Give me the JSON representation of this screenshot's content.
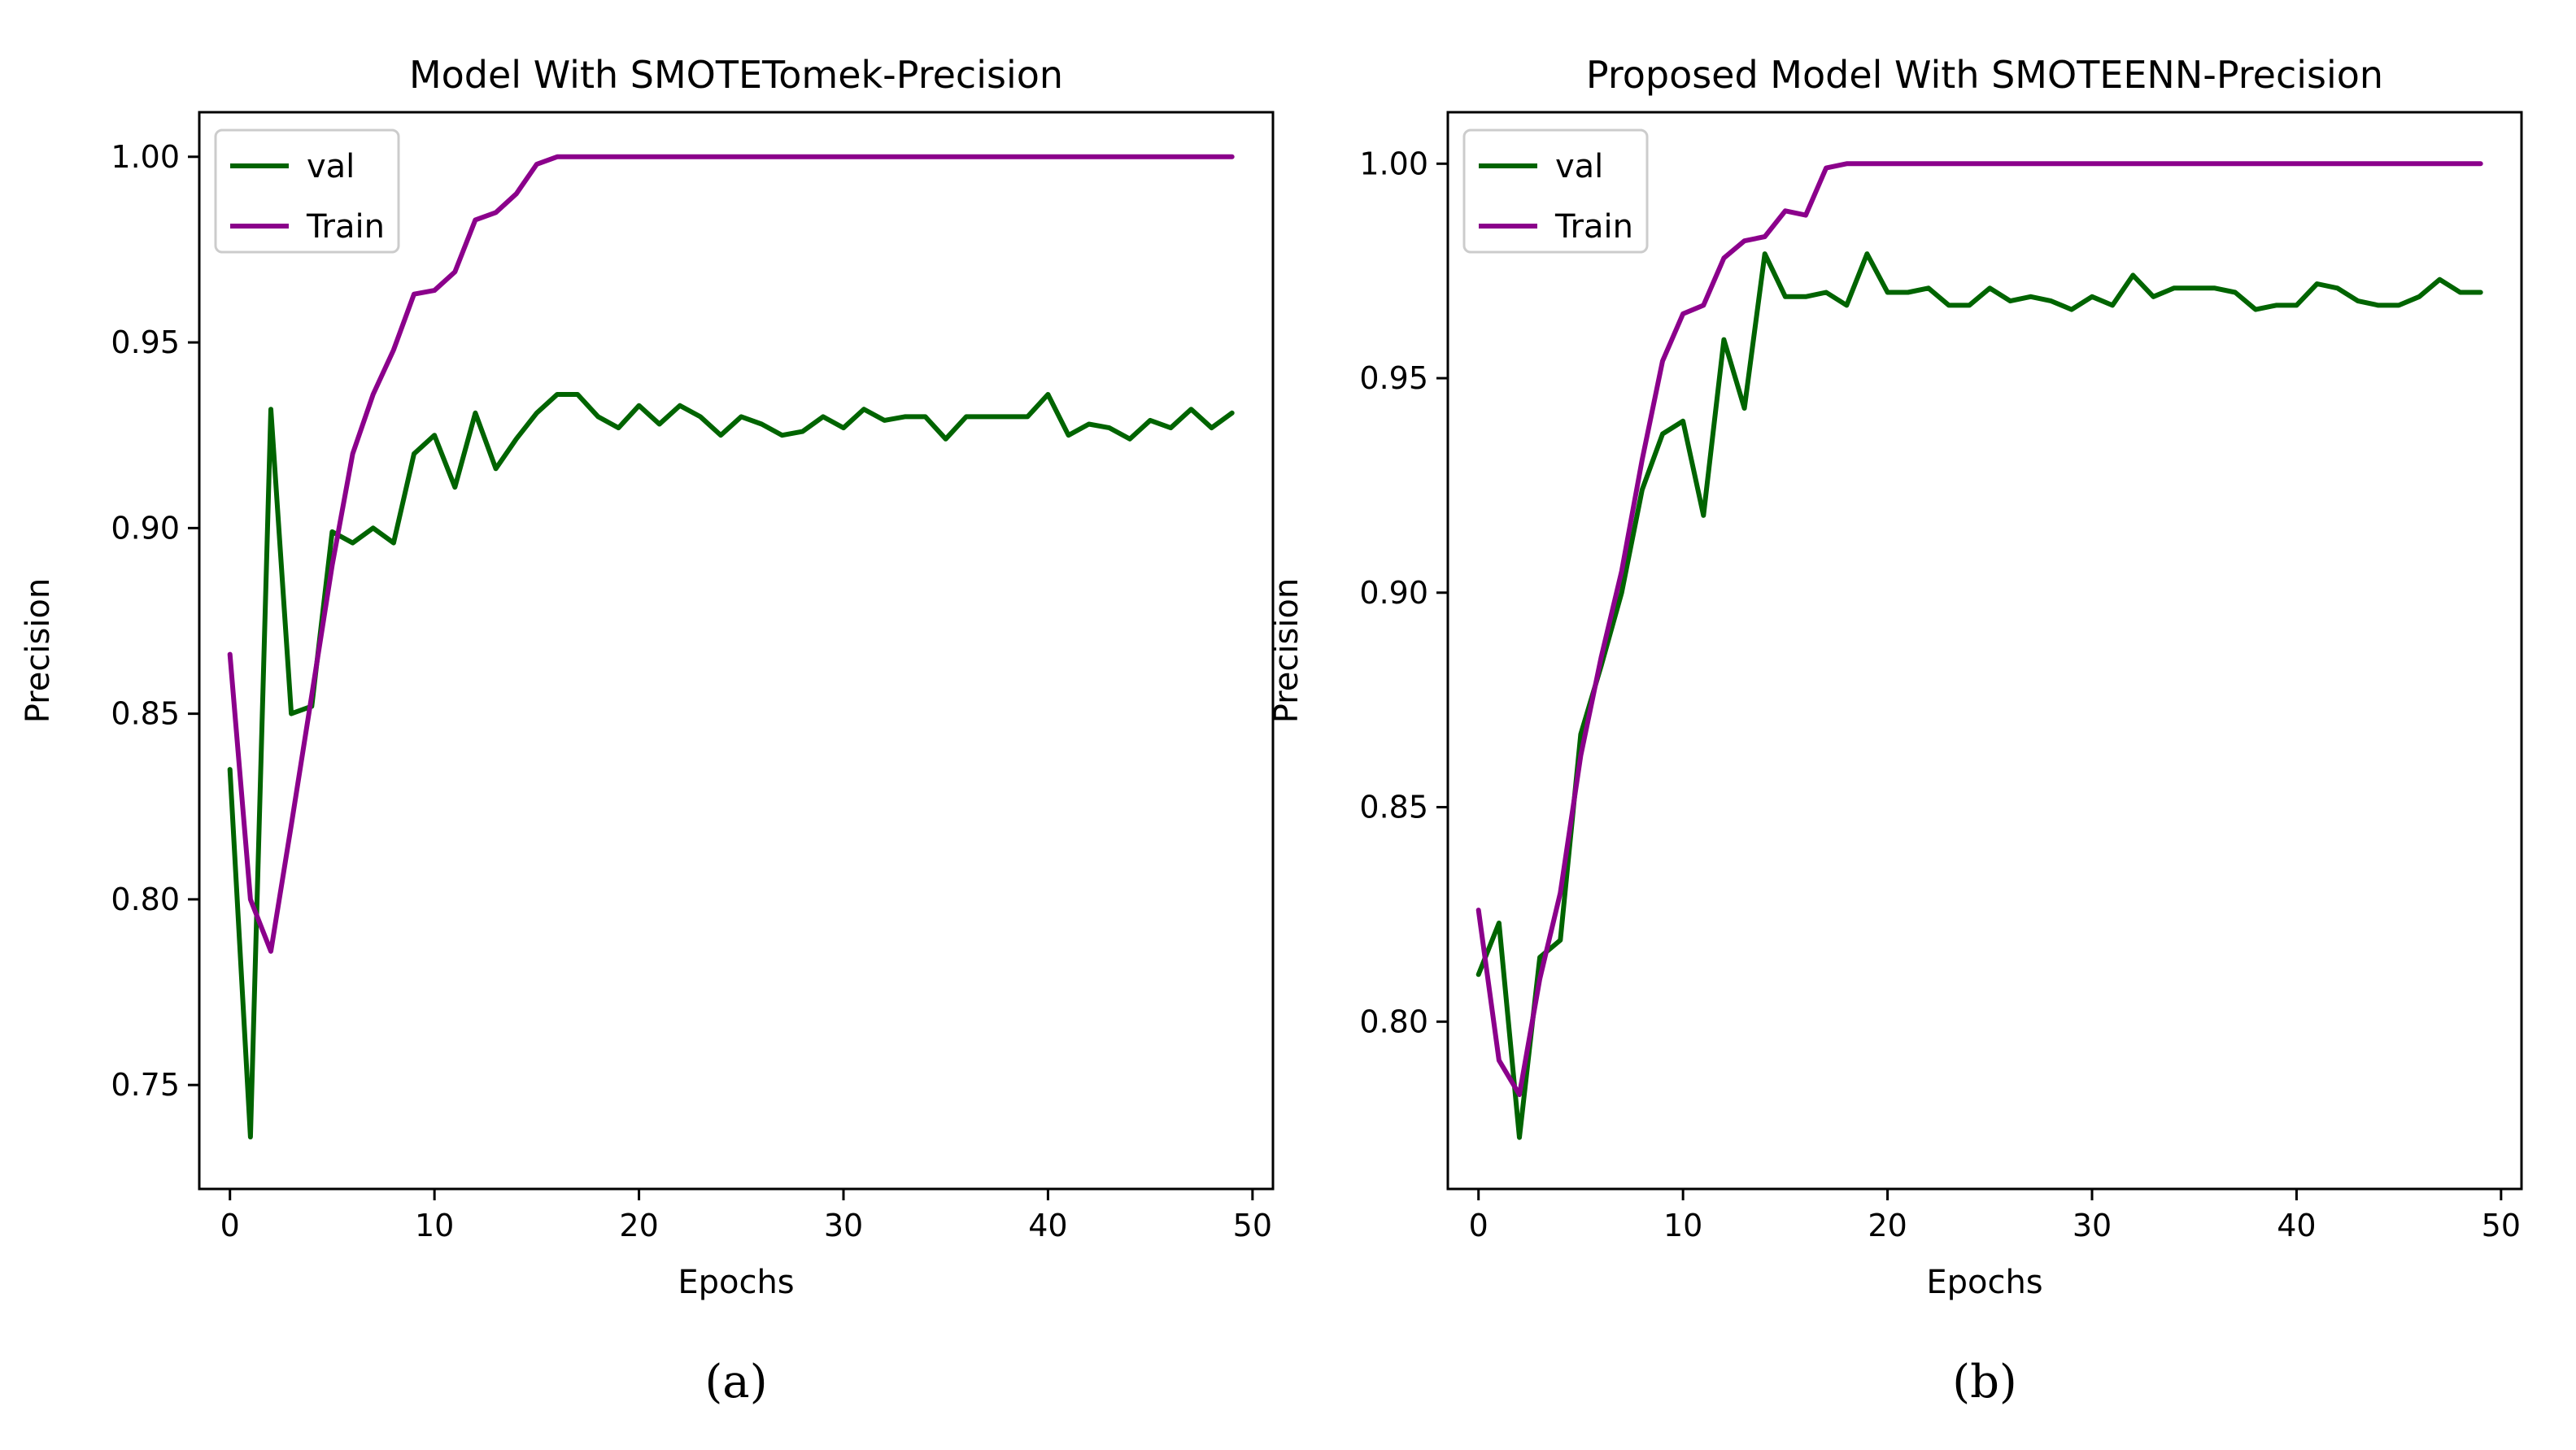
{
  "chart_data": [
    {
      "type": "line",
      "title": "Model With SMOTETomek-Precision",
      "xlabel": "Epochs",
      "ylabel": "Precision",
      "xlim": [
        -1.5,
        51
      ],
      "ylim": [
        0.722,
        1.012
      ],
      "xticks": [
        0,
        10,
        20,
        30,
        40,
        50
      ],
      "xtick_labels": [
        "0",
        "10",
        "20",
        "30",
        "40",
        "50"
      ],
      "yticks": [
        0.75,
        0.8,
        0.85,
        0.9,
        0.95,
        1.0
      ],
      "ytick_labels": [
        "0.75",
        "0.80",
        "0.85",
        "0.90",
        "0.95",
        "1.00"
      ],
      "legend_position": "top-left",
      "caption": "(a)",
      "series": [
        {
          "name": "val",
          "color": "#006400",
          "x": [
            0,
            1,
            2,
            3,
            4,
            5,
            6,
            7,
            8,
            9,
            10,
            11,
            12,
            13,
            14,
            15,
            16,
            17,
            18,
            19,
            20,
            21,
            22,
            23,
            24,
            25,
            26,
            27,
            28,
            29,
            30,
            31,
            32,
            33,
            34,
            35,
            36,
            37,
            38,
            39,
            40,
            41,
            42,
            43,
            44,
            45,
            46,
            47,
            48,
            49
          ],
          "values": [
            0.835,
            0.736,
            0.932,
            0.85,
            0.852,
            0.899,
            0.896,
            0.9,
            0.896,
            0.92,
            0.925,
            0.911,
            0.931,
            0.916,
            0.924,
            0.931,
            0.936,
            0.936,
            0.93,
            0.927,
            0.933,
            0.928,
            0.933,
            0.93,
            0.925,
            0.93,
            0.928,
            0.925,
            0.926,
            0.93,
            0.927,
            0.932,
            0.929,
            0.93,
            0.93,
            0.924,
            0.93,
            0.93,
            0.93,
            0.93,
            0.936,
            0.925,
            0.928,
            0.927,
            0.924,
            0.929,
            0.927,
            0.932,
            0.927,
            0.931
          ]
        },
        {
          "name": "Train",
          "color": "#8b008b",
          "x": [
            0,
            1,
            2,
            3,
            4,
            5,
            6,
            7,
            8,
            9,
            10,
            11,
            12,
            13,
            14,
            15,
            16,
            17,
            18,
            19,
            20,
            21,
            22,
            23,
            24,
            25,
            26,
            27,
            28,
            29,
            30,
            31,
            32,
            33,
            34,
            35,
            36,
            37,
            38,
            39,
            40,
            41,
            42,
            43,
            44,
            45,
            46,
            47,
            48,
            49
          ],
          "values": [
            0.866,
            0.8,
            0.786,
            0.82,
            0.855,
            0.89,
            0.92,
            0.936,
            0.948,
            0.963,
            0.964,
            0.969,
            0.983,
            0.985,
            0.99,
            0.998,
            1.0,
            1.0,
            1.0,
            1.0,
            1.0,
            1.0,
            1.0,
            1.0,
            1.0,
            1.0,
            1.0,
            1.0,
            1.0,
            1.0,
            1.0,
            1.0,
            1.0,
            1.0,
            1.0,
            1.0,
            1.0,
            1.0,
            1.0,
            1.0,
            1.0,
            1.0,
            1.0,
            1.0,
            1.0,
            1.0,
            1.0,
            1.0,
            1.0,
            1.0
          ]
        }
      ]
    },
    {
      "type": "line",
      "title": "Proposed Model With SMOTEENN-Precision",
      "xlabel": "Epochs",
      "ylabel": "Precision",
      "xlim": [
        -1.5,
        51
      ],
      "ylim": [
        0.761,
        1.012
      ],
      "xticks": [
        0,
        10,
        20,
        30,
        40,
        50
      ],
      "xtick_labels": [
        "0",
        "10",
        "20",
        "30",
        "40",
        "50"
      ],
      "yticks": [
        0.8,
        0.85,
        0.9,
        0.95,
        1.0
      ],
      "ytick_labels": [
        "0.80",
        "0.85",
        "0.90",
        "0.95",
        "1.00"
      ],
      "legend_position": "top-left",
      "caption": "(b)",
      "series": [
        {
          "name": "val",
          "color": "#006400",
          "x": [
            0,
            1,
            2,
            3,
            4,
            5,
            6,
            7,
            8,
            9,
            10,
            11,
            12,
            13,
            14,
            15,
            16,
            17,
            18,
            19,
            20,
            21,
            22,
            23,
            24,
            25,
            26,
            27,
            28,
            29,
            30,
            31,
            32,
            33,
            34,
            35,
            36,
            37,
            38,
            39,
            40,
            41,
            42,
            43,
            44,
            45,
            46,
            47,
            48,
            49
          ],
          "values": [
            0.811,
            0.823,
            0.773,
            0.815,
            0.819,
            0.867,
            0.883,
            0.9,
            0.924,
            0.937,
            0.94,
            0.918,
            0.959,
            0.943,
            0.979,
            0.969,
            0.969,
            0.97,
            0.967,
            0.979,
            0.97,
            0.97,
            0.971,
            0.967,
            0.967,
            0.971,
            0.968,
            0.969,
            0.968,
            0.966,
            0.969,
            0.967,
            0.974,
            0.969,
            0.971,
            0.971,
            0.971,
            0.97,
            0.966,
            0.967,
            0.967,
            0.972,
            0.971,
            0.968,
            0.967,
            0.967,
            0.969,
            0.973,
            0.97,
            0.97
          ]
        },
        {
          "name": "Train",
          "color": "#8b008b",
          "x": [
            0,
            1,
            2,
            3,
            4,
            5,
            6,
            7,
            8,
            9,
            10,
            11,
            12,
            13,
            14,
            15,
            16,
            17,
            18,
            19,
            20,
            21,
            22,
            23,
            24,
            25,
            26,
            27,
            28,
            29,
            30,
            31,
            32,
            33,
            34,
            35,
            36,
            37,
            38,
            39,
            40,
            41,
            42,
            43,
            44,
            45,
            46,
            47,
            48,
            49
          ],
          "values": [
            0.826,
            0.791,
            0.783,
            0.81,
            0.83,
            0.862,
            0.885,
            0.905,
            0.931,
            0.954,
            0.965,
            0.967,
            0.978,
            0.982,
            0.983,
            0.989,
            0.988,
            0.999,
            1.0,
            1.0,
            1.0,
            1.0,
            1.0,
            1.0,
            1.0,
            1.0,
            1.0,
            1.0,
            1.0,
            1.0,
            1.0,
            1.0,
            1.0,
            1.0,
            1.0,
            1.0,
            1.0,
            1.0,
            1.0,
            1.0,
            1.0,
            1.0,
            1.0,
            1.0,
            1.0,
            1.0,
            1.0,
            1.0,
            1.0,
            1.0
          ]
        }
      ]
    }
  ]
}
